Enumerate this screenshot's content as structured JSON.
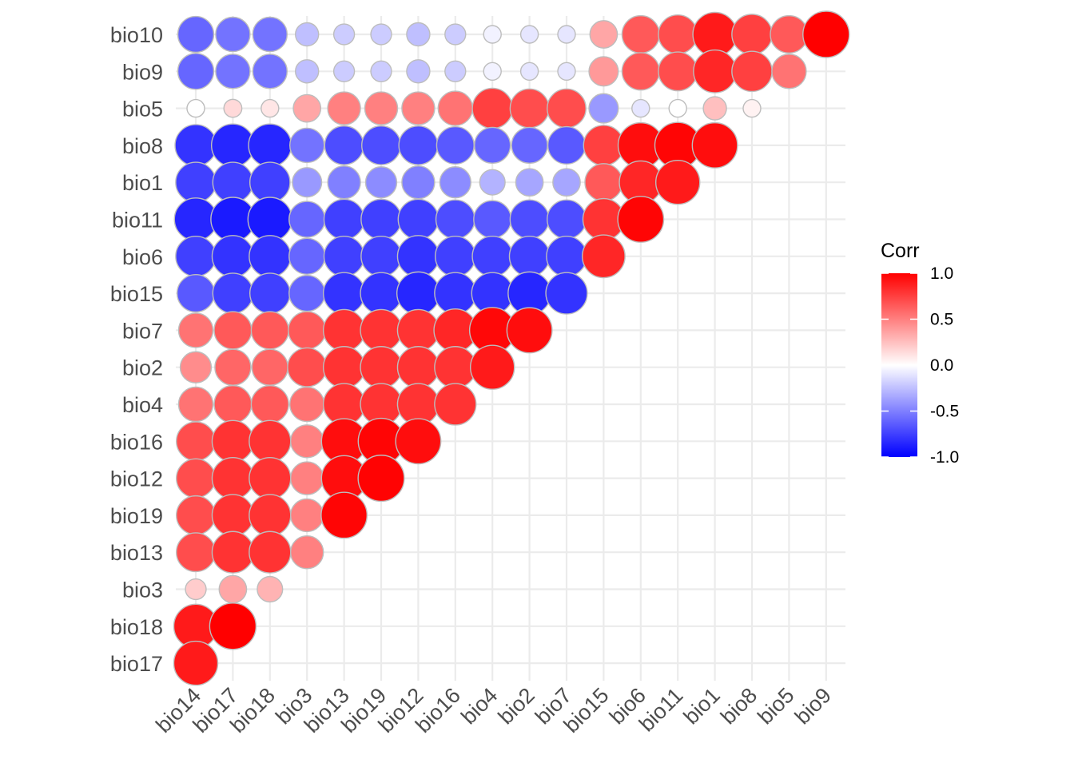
{
  "chart_data": {
    "type": "heatmap",
    "style": "circle correlation matrix (lower triangle)",
    "x_labels": [
      "bio14",
      "bio17",
      "bio18",
      "bio3",
      "bio13",
      "bio19",
      "bio12",
      "bio16",
      "bio4",
      "bio2",
      "bio7",
      "bio15",
      "bio6",
      "bio11",
      "bio1",
      "bio8",
      "bio5",
      "bio9"
    ],
    "y_labels_top_to_bottom": [
      "bio10",
      "bio9",
      "bio5",
      "bio8",
      "bio1",
      "bio11",
      "bio6",
      "bio15",
      "bio7",
      "bio2",
      "bio4",
      "bio16",
      "bio12",
      "bio19",
      "bio13",
      "bio3",
      "bio18",
      "bio17"
    ],
    "values": [
      [
        -0.6,
        -0.55,
        -0.55,
        -0.25,
        -0.2,
        -0.2,
        -0.25,
        -0.2,
        -0.05,
        -0.1,
        -0.1,
        0.35,
        0.65,
        0.7,
        0.9,
        0.75,
        0.65,
        1.0
      ],
      [
        -0.6,
        -0.55,
        -0.55,
        -0.25,
        -0.2,
        -0.2,
        -0.25,
        -0.2,
        -0.05,
        -0.1,
        -0.1,
        0.4,
        0.65,
        0.7,
        0.85,
        0.75,
        0.55
      ],
      [
        0.0,
        0.15,
        0.1,
        0.35,
        0.5,
        0.5,
        0.5,
        0.55,
        0.75,
        0.7,
        0.7,
        -0.4,
        -0.1,
        0.0,
        0.25,
        0.05
      ],
      [
        -0.8,
        -0.85,
        -0.85,
        -0.55,
        -0.7,
        -0.7,
        -0.7,
        -0.65,
        -0.6,
        -0.6,
        -0.65,
        0.75,
        0.95,
        0.98,
        0.95
      ],
      [
        -0.75,
        -0.75,
        -0.75,
        -0.4,
        -0.5,
        -0.45,
        -0.5,
        -0.45,
        -0.3,
        -0.35,
        -0.35,
        0.65,
        0.85,
        0.9
      ],
      [
        -0.85,
        -0.9,
        -0.9,
        -0.6,
        -0.75,
        -0.75,
        -0.75,
        -0.7,
        -0.65,
        -0.7,
        -0.7,
        0.8,
        0.98
      ],
      [
        -0.75,
        -0.8,
        -0.8,
        -0.6,
        -0.75,
        -0.75,
        -0.8,
        -0.75,
        -0.75,
        -0.75,
        -0.75,
        0.85
      ],
      [
        -0.65,
        -0.75,
        -0.75,
        -0.6,
        -0.8,
        -0.8,
        -0.85,
        -0.8,
        -0.8,
        -0.85,
        -0.8
      ],
      [
        0.55,
        0.65,
        0.65,
        0.65,
        0.8,
        0.8,
        0.8,
        0.85,
        0.97,
        0.95
      ],
      [
        0.45,
        0.6,
        0.6,
        0.7,
        0.8,
        0.8,
        0.8,
        0.8,
        0.9
      ],
      [
        0.55,
        0.65,
        0.65,
        0.55,
        0.8,
        0.8,
        0.8,
        0.8
      ],
      [
        0.7,
        0.8,
        0.8,
        0.5,
        0.95,
        0.98,
        0.95
      ],
      [
        0.7,
        0.8,
        0.8,
        0.5,
        0.95,
        0.99
      ],
      [
        0.7,
        0.8,
        0.8,
        0.5,
        0.98
      ],
      [
        0.7,
        0.8,
        0.8,
        0.5
      ],
      [
        0.2,
        0.35,
        0.3
      ],
      [
        0.9,
        1.0
      ],
      [
        0.9
      ]
    ],
    "legend": {
      "title": "Corr",
      "ticks": [
        "1.0",
        "0.5",
        "0.0",
        "-0.5",
        "-1.0"
      ],
      "range": [
        -1.0,
        1.0
      ],
      "colors": {
        "low": "#0000ff",
        "mid": "#ffffff",
        "high": "#ff0000"
      },
      "placement": "right"
    },
    "grid": true
  }
}
